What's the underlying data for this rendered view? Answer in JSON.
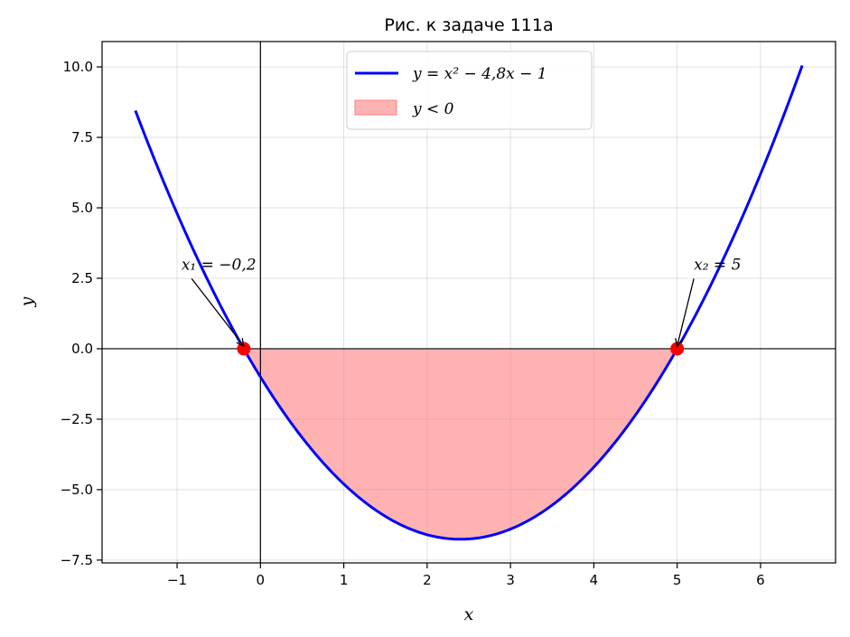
{
  "chart_data": {
    "type": "line",
    "title": "Рис. к задаче 111а",
    "xlabel": "x",
    "ylabel": "y",
    "xlim": [
      -1.9,
      6.9
    ],
    "ylim": [
      -7.6,
      10.9
    ],
    "grid": true,
    "legend_position": "top-center",
    "x_ticks": [
      -1,
      0,
      1,
      2,
      3,
      4,
      5,
      6
    ],
    "y_ticks": [
      -7.5,
      -5.0,
      -2.5,
      0.0,
      2.5,
      5.0,
      7.5,
      10.0
    ],
    "x_tick_labels": [
      "−1",
      "0",
      "1",
      "2",
      "3",
      "4",
      "5",
      "6"
    ],
    "y_tick_labels": [
      "−7.5",
      "−5.0",
      "−2.5",
      "0.0",
      "2.5",
      "5.0",
      "7.5",
      "10.0"
    ],
    "series": [
      {
        "name": "y = x² − 4,8x − 1",
        "kind": "line",
        "color": "#0000ff",
        "function": {
          "a": 1,
          "b": -4.8,
          "c": -1
        },
        "x_range": [
          -1.5,
          6.5
        ]
      },
      {
        "name": "y < 0",
        "kind": "fill_between",
        "color": "#ff7f7f",
        "x_range": [
          -0.2,
          5
        ]
      }
    ],
    "points": [
      {
        "x": -0.2,
        "y": 0,
        "color": "#ff0000"
      },
      {
        "x": 5,
        "y": 0,
        "color": "#ff0000"
      }
    ],
    "annotations": [
      {
        "label": "x₁ = −0,2",
        "point": [
          -0.2,
          0
        ],
        "text_at": [
          -0.5,
          3
        ]
      },
      {
        "label": "x₂ = 5",
        "point": [
          5,
          0
        ],
        "text_at": [
          5.2,
          3
        ]
      }
    ]
  }
}
